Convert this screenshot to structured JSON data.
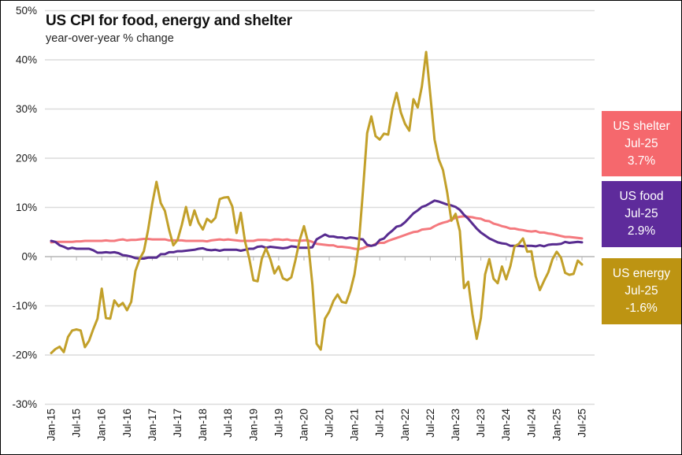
{
  "chart_data": {
    "type": "line",
    "title": "US CPI for food, energy and shelter",
    "subtitle": "year-over-year % change",
    "x_frequency": "monthly",
    "x_start": "Jan-15",
    "x_end": "Jul-25",
    "x_tick_step_months": 6,
    "x_tick_labels": [
      "Jan-15",
      "Jul-15",
      "Jan-16",
      "Jul-16",
      "Jan-17",
      "Jul-17",
      "Jan-18",
      "Jul-18",
      "Jan-19",
      "Jul-19",
      "Jan-20",
      "Jul-20",
      "Jan-21",
      "Jul-21",
      "Jan-22",
      "Jul-22",
      "Jan-23",
      "Jul-23",
      "Jan-24",
      "Jul-24",
      "Jan-25",
      "Jul-25"
    ],
    "y_ticks": [
      50,
      40,
      30,
      20,
      10,
      0,
      -10,
      -20,
      -30
    ],
    "y_tick_suffix": "%",
    "ylim": [
      -30,
      50
    ],
    "grid": "horizontal",
    "legend_position": "right",
    "series": [
      {
        "id": "shelter",
        "name": "US shelter",
        "color": "#F4797E",
        "values": [
          2.9,
          3.0,
          3.0,
          3.0,
          3.0,
          3.0,
          3.1,
          3.1,
          3.2,
          3.2,
          3.2,
          3.2,
          3.2,
          3.3,
          3.2,
          3.2,
          3.4,
          3.5,
          3.3,
          3.4,
          3.4,
          3.5,
          3.6,
          3.6,
          3.5,
          3.5,
          3.5,
          3.5,
          3.3,
          3.3,
          3.3,
          3.3,
          3.2,
          3.2,
          3.2,
          3.2,
          3.2,
          3.1,
          3.3,
          3.4,
          3.5,
          3.4,
          3.5,
          3.4,
          3.3,
          3.2,
          3.2,
          3.2,
          3.2,
          3.4,
          3.4,
          3.4,
          3.3,
          3.5,
          3.5,
          3.4,
          3.5,
          3.3,
          3.3,
          3.2,
          3.3,
          3.3,
          3.0,
          2.6,
          2.5,
          2.4,
          2.3,
          2.3,
          2.0,
          2.0,
          1.9,
          1.8,
          1.6,
          1.5,
          1.7,
          2.1,
          2.2,
          2.6,
          2.8,
          2.8,
          3.2,
          3.5,
          3.8,
          4.1,
          4.4,
          4.7,
          5.0,
          5.1,
          5.5,
          5.6,
          5.7,
          6.2,
          6.6,
          6.9,
          7.1,
          7.5,
          7.9,
          8.1,
          8.2,
          8.1,
          8.0,
          7.8,
          7.7,
          7.3,
          7.2,
          6.7,
          6.5,
          6.2,
          6.0,
          5.7,
          5.7,
          5.5,
          5.4,
          5.2,
          5.1,
          5.2,
          4.9,
          4.9,
          4.7,
          4.6,
          4.4,
          4.2,
          4.0,
          4.0,
          3.9,
          3.8,
          3.7
        ]
      },
      {
        "id": "food",
        "name": "US food",
        "color": "#582C90",
        "values": [
          3.2,
          3.0,
          2.3,
          2.0,
          1.6,
          1.8,
          1.6,
          1.6,
          1.6,
          1.6,
          1.3,
          0.8,
          0.8,
          0.9,
          0.8,
          0.9,
          0.7,
          0.3,
          0.2,
          0.0,
          -0.3,
          -0.4,
          -0.4,
          -0.2,
          -0.2,
          -0.2,
          0.5,
          0.5,
          0.9,
          0.9,
          1.1,
          1.1,
          1.2,
          1.3,
          1.4,
          1.6,
          1.7,
          1.4,
          1.3,
          1.4,
          1.2,
          1.4,
          1.4,
          1.4,
          1.4,
          1.2,
          1.4,
          1.6,
          1.6,
          2.0,
          2.1,
          1.8,
          2.0,
          1.9,
          1.8,
          1.7,
          1.8,
          2.1,
          2.0,
          1.8,
          1.8,
          1.8,
          1.9,
          3.5,
          4.0,
          4.5,
          4.1,
          4.1,
          3.9,
          3.9,
          3.7,
          3.9,
          3.8,
          3.6,
          3.5,
          2.4,
          2.2,
          2.4,
          3.4,
          3.7,
          4.6,
          5.3,
          6.1,
          6.3,
          7.0,
          7.9,
          8.8,
          9.4,
          10.1,
          10.4,
          10.9,
          11.4,
          11.2,
          10.9,
          10.6,
          10.4,
          10.1,
          9.5,
          8.5,
          7.7,
          6.7,
          5.7,
          4.9,
          4.3,
          3.7,
          3.3,
          2.9,
          2.7,
          2.6,
          2.2,
          2.2,
          2.2,
          2.1,
          2.2,
          2.2,
          2.1,
          2.3,
          2.1,
          2.4,
          2.5,
          2.5,
          2.6,
          3.0,
          2.8,
          2.9,
          3.0,
          2.9
        ]
      },
      {
        "id": "energy",
        "name": "US energy",
        "color": "#C2A02A",
        "values": [
          -19.6,
          -18.8,
          -18.3,
          -19.4,
          -16.3,
          -15.0,
          -14.8,
          -15.0,
          -18.4,
          -17.1,
          -14.7,
          -12.6,
          -6.5,
          -12.5,
          -12.6,
          -8.9,
          -10.1,
          -9.4,
          -10.9,
          -9.2,
          -2.9,
          -0.5,
          1.1,
          5.4,
          10.8,
          15.2,
          10.9,
          9.3,
          5.4,
          2.3,
          3.4,
          6.4,
          10.1,
          6.4,
          9.4,
          6.9,
          5.5,
          7.7,
          7.0,
          7.9,
          11.7,
          12.0,
          12.1,
          10.2,
          4.8,
          8.9,
          3.1,
          -0.3,
          -4.8,
          -5.0,
          -0.4,
          1.7,
          -0.5,
          -3.4,
          -2.0,
          -4.4,
          -4.8,
          -4.2,
          -0.6,
          3.4,
          6.2,
          2.8,
          -5.7,
          -17.7,
          -18.9,
          -12.6,
          -11.2,
          -9.0,
          -7.7,
          -9.2,
          -9.4,
          -7.0,
          -3.6,
          2.4,
          13.2,
          25.1,
          28.5,
          24.5,
          23.8,
          25.0,
          24.8,
          30.0,
          33.3,
          29.3,
          27.0,
          25.6,
          32.0,
          30.3,
          34.6,
          41.6,
          32.9,
          23.8,
          19.8,
          17.6,
          13.1,
          7.3,
          8.7,
          5.2,
          -6.4,
          -5.1,
          -11.7,
          -16.7,
          -12.5,
          -3.6,
          -0.5,
          -4.5,
          -5.4,
          -2.0,
          -4.6,
          -1.9,
          2.1,
          2.6,
          3.7,
          1.0,
          1.1,
          -4.0,
          -6.8,
          -4.9,
          -3.2,
          -0.5,
          1.0,
          -0.2,
          -3.3,
          -3.7,
          -3.5,
          -0.8,
          -1.6
        ]
      }
    ]
  },
  "legend": {
    "items": [
      {
        "name": "US shelter",
        "date": "Jul-25",
        "value": "3.7%",
        "bg": "#F5686D"
      },
      {
        "name": "US food",
        "date": "Jul-25",
        "value": "2.9%",
        "bg": "#5E2B9B"
      },
      {
        "name": "US energy",
        "date": "Jul-25",
        "value": "-1.6%",
        "bg": "#BD9412"
      }
    ]
  }
}
